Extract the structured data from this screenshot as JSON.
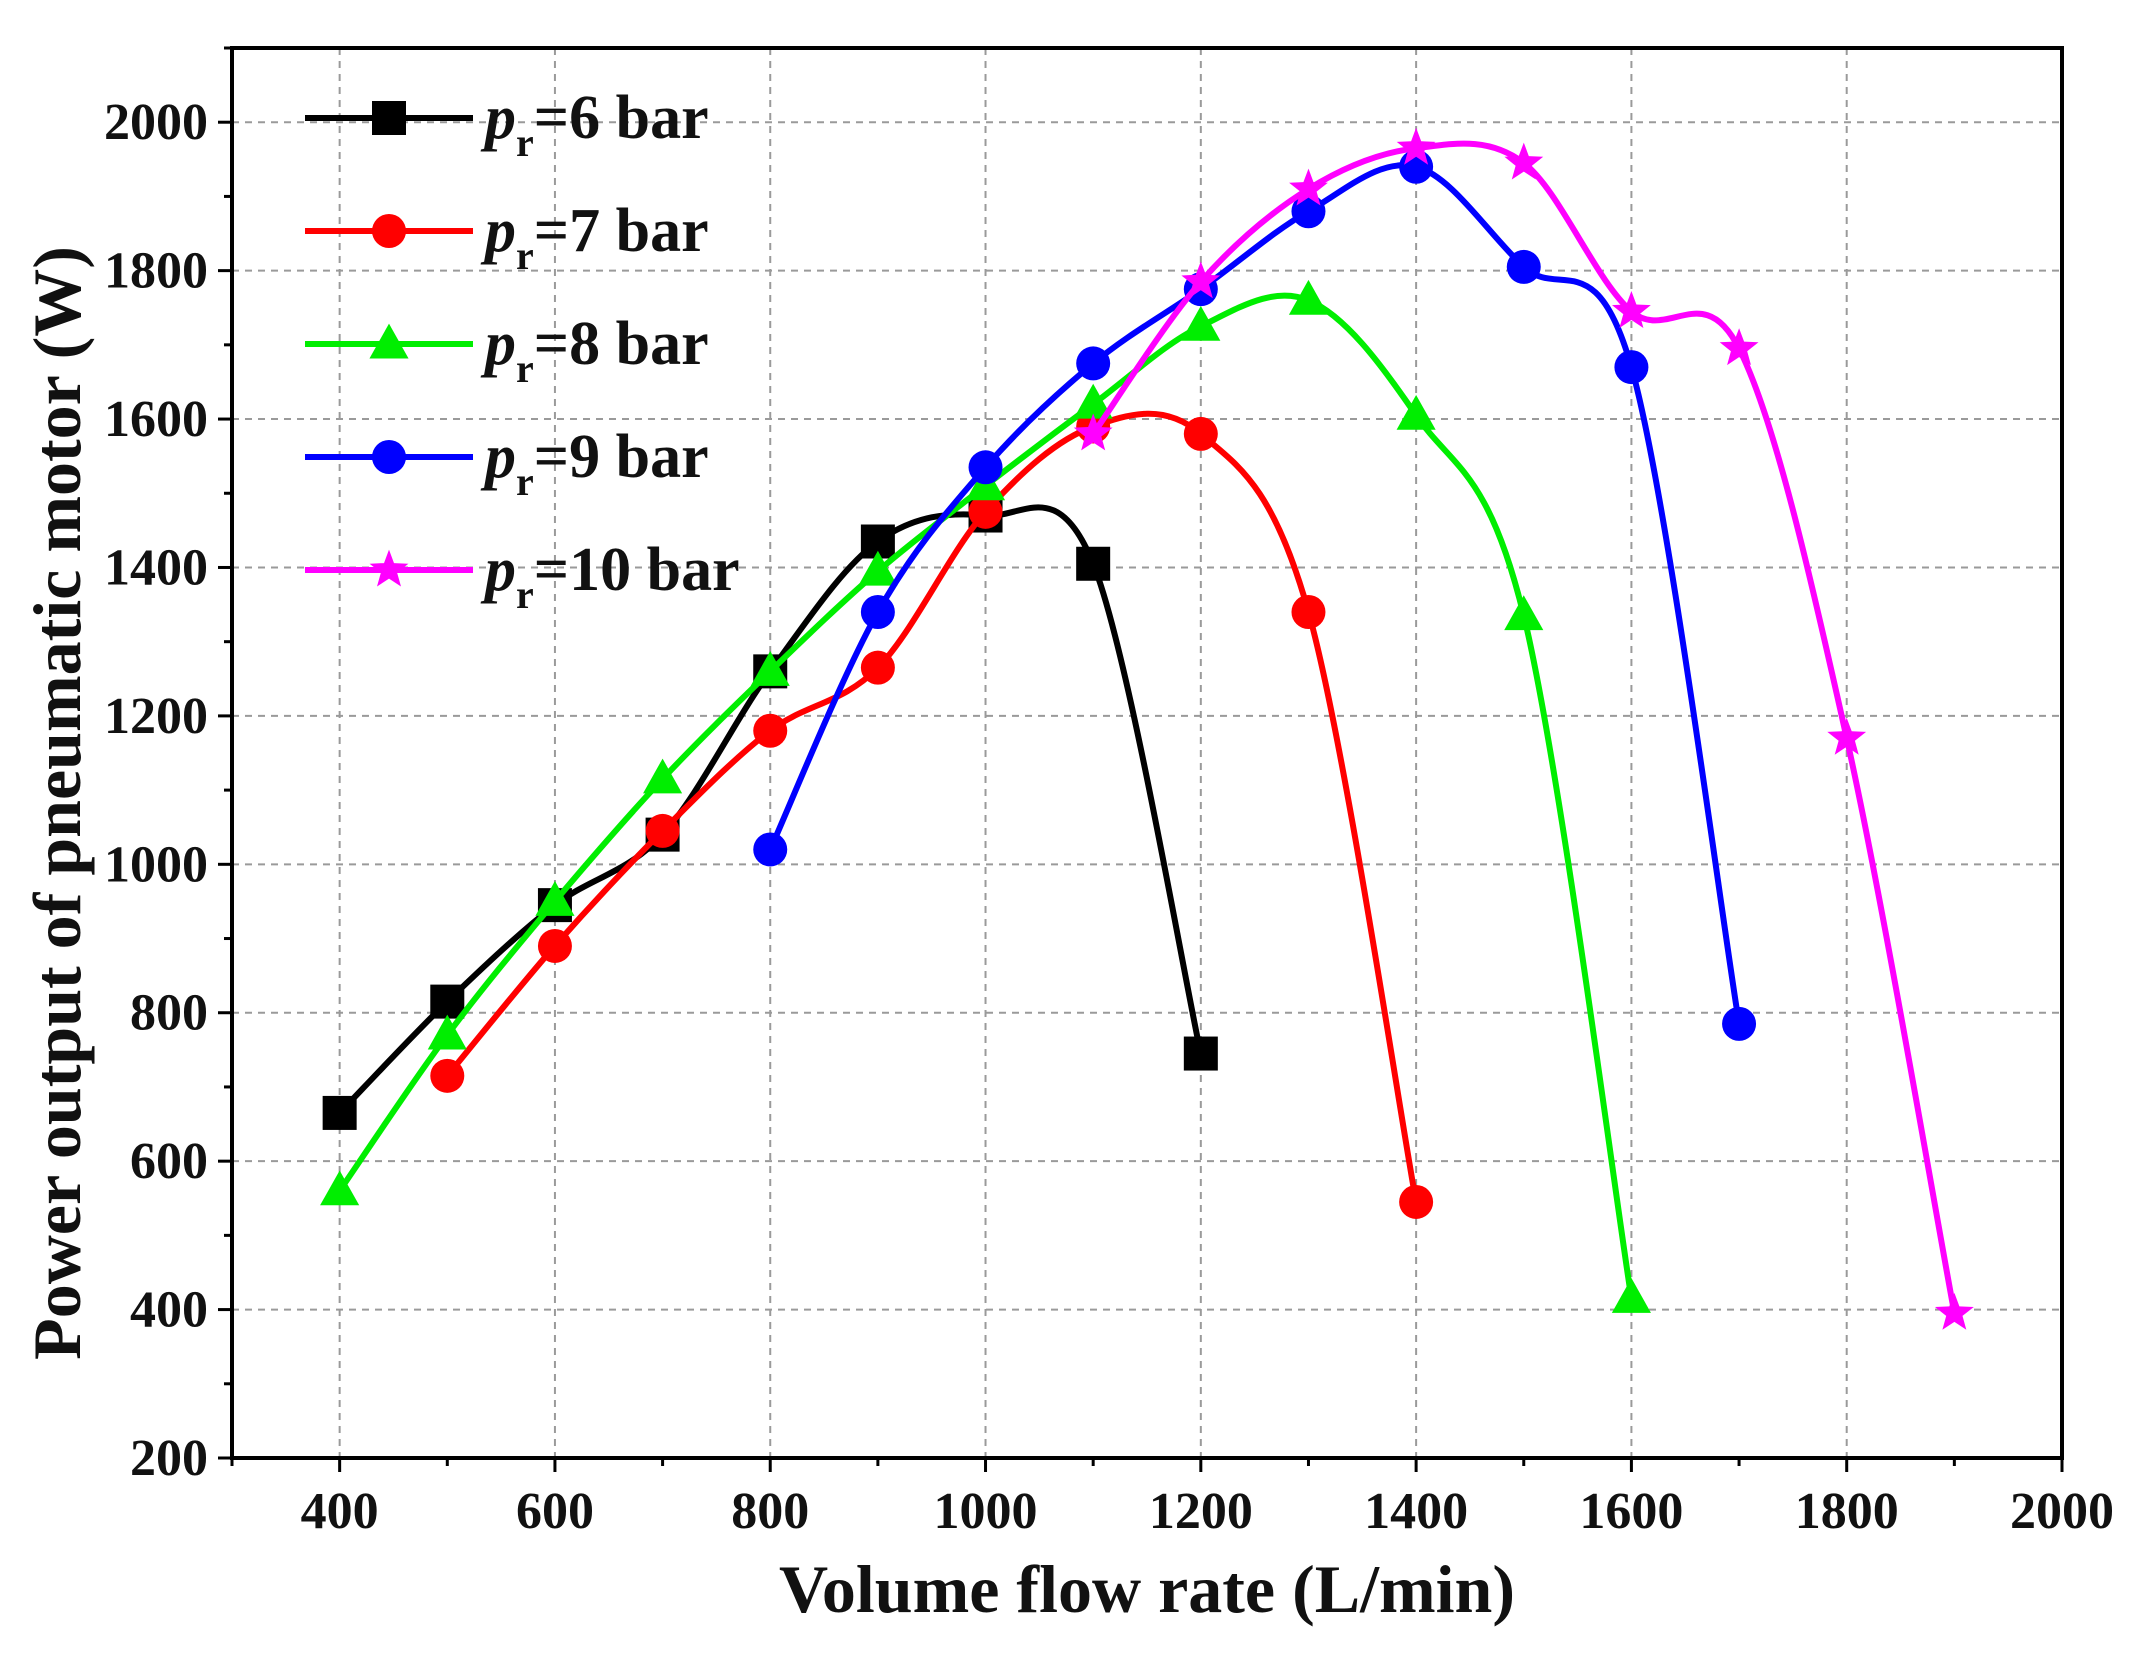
{
  "chart_data": {
    "type": "line",
    "title": "",
    "xlabel": "Volume flow rate (L/min)",
    "ylabel": "Power output of pneumatic motor (W)",
    "xlim": [
      300,
      2000
    ],
    "ylim": [
      200,
      2100
    ],
    "xticks": [
      400,
      600,
      800,
      1000,
      1200,
      1400,
      1600,
      1800,
      2000
    ],
    "yticks": [
      200,
      400,
      600,
      800,
      1000,
      1200,
      1400,
      1600,
      1800,
      2000
    ],
    "grid": true,
    "legend_position": "top-left",
    "series": [
      {
        "name": "p",
        "sub": "r",
        "suffix": "=6 bar",
        "color": "#000000",
        "marker": "square",
        "x": [
          400,
          500,
          600,
          700,
          800,
          900,
          1000,
          1100,
          1200
        ],
        "y": [
          665,
          815,
          945,
          1040,
          1260,
          1435,
          1470,
          1405,
          745
        ]
      },
      {
        "name": "p",
        "sub": "r",
        "suffix": "=7 bar",
        "color": "#ff0000",
        "marker": "circle",
        "x": [
          500,
          600,
          700,
          800,
          900,
          1000,
          1100,
          1200,
          1300,
          1400
        ],
        "y": [
          715,
          890,
          1045,
          1180,
          1265,
          1475,
          1590,
          1580,
          1340,
          545
        ]
      },
      {
        "name": "p",
        "sub": "r",
        "suffix": "=8 bar",
        "color": "#00ee00",
        "marker": "triangle",
        "x": [
          400,
          500,
          600,
          700,
          800,
          900,
          1000,
          1100,
          1200,
          1300,
          1400,
          1500,
          1600
        ],
        "y": [
          560,
          770,
          950,
          1115,
          1260,
          1395,
          1510,
          1620,
          1725,
          1760,
          1605,
          1335,
          415
        ]
      },
      {
        "name": "p",
        "sub": "r",
        "suffix": "=9 bar",
        "color": "#0000ff",
        "marker": "circle",
        "x": [
          800,
          900,
          1000,
          1100,
          1200,
          1300,
          1400,
          1500,
          1600,
          1700
        ],
        "y": [
          1020,
          1340,
          1535,
          1675,
          1775,
          1880,
          1940,
          1805,
          1670,
          785
        ]
      },
      {
        "name": "p",
        "sub": "r",
        "suffix": "=10 bar",
        "color": "#ff00ff",
        "marker": "star",
        "x": [
          1100,
          1200,
          1300,
          1400,
          1500,
          1600,
          1700,
          1800,
          1900
        ],
        "y": [
          1580,
          1785,
          1910,
          1965,
          1945,
          1745,
          1695,
          1170,
          395
        ]
      }
    ]
  }
}
